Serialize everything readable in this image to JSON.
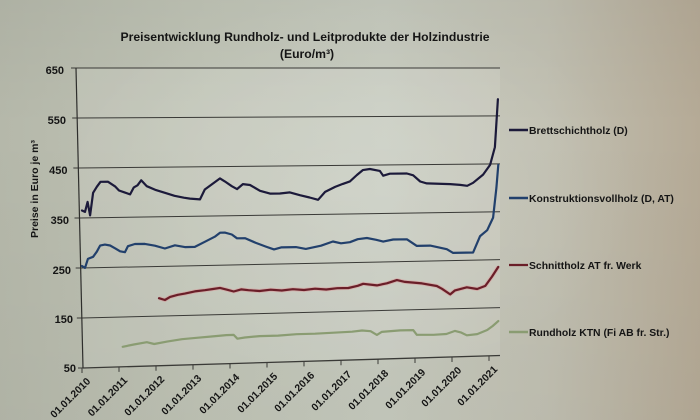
{
  "chart_data": {
    "type": "line",
    "title": "Preisentwicklung Rundholz- und Leitprodukte der Holzindustrie",
    "subtitle": "(Euro/m³)",
    "xlabel": "",
    "ylabel": "Preise in Euro je m³",
    "ylim": [
      50,
      650
    ],
    "yticks": [
      50,
      150,
      250,
      350,
      450,
      550,
      650
    ],
    "xlim": [
      2010,
      2021.35
    ],
    "xtick_labels": [
      "01.01.2010",
      "01.01.2011",
      "01.01.2012",
      "01.01.2013",
      "01.01.2014",
      "01.01.2015",
      "01.01.2016",
      "01.01.2017",
      "01.01.2018",
      "01.01.2019",
      "01.01.2020",
      "01.01.2021"
    ],
    "grid": "horizontal",
    "legend_position": "right",
    "series": [
      {
        "name": "Brettschichtholz (D)",
        "color": "#1c1a3a",
        "points": [
          [
            2010.0,
            365
          ],
          [
            2010.08,
            362
          ],
          [
            2010.15,
            382
          ],
          [
            2010.22,
            355
          ],
          [
            2010.3,
            400
          ],
          [
            2010.4,
            412
          ],
          [
            2010.5,
            422
          ],
          [
            2010.7,
            422
          ],
          [
            2010.9,
            412
          ],
          [
            2011.0,
            404
          ],
          [
            2011.15,
            400
          ],
          [
            2011.3,
            396
          ],
          [
            2011.4,
            410
          ],
          [
            2011.5,
            414
          ],
          [
            2011.6,
            424
          ],
          [
            2011.75,
            412
          ],
          [
            2012.0,
            404
          ],
          [
            2012.25,
            398
          ],
          [
            2012.5,
            392
          ],
          [
            2012.75,
            388
          ],
          [
            2012.92,
            386
          ],
          [
            2013.19,
            384
          ],
          [
            2013.32,
            404
          ],
          [
            2013.54,
            416
          ],
          [
            2013.73,
            426
          ],
          [
            2013.86,
            420
          ],
          [
            2014.05,
            410
          ],
          [
            2014.19,
            404
          ],
          [
            2014.35,
            414
          ],
          [
            2014.54,
            412
          ],
          [
            2014.81,
            400
          ],
          [
            2015.08,
            394
          ],
          [
            2015.35,
            394
          ],
          [
            2015.62,
            396
          ],
          [
            2015.89,
            390
          ],
          [
            2016.15,
            385
          ],
          [
            2016.38,
            380
          ],
          [
            2016.57,
            396
          ],
          [
            2016.84,
            406
          ],
          [
            2017.05,
            412
          ],
          [
            2017.24,
            417
          ],
          [
            2017.43,
            430
          ],
          [
            2017.59,
            440
          ],
          [
            2017.78,
            442
          ],
          [
            2018.05,
            438
          ],
          [
            2018.14,
            428
          ],
          [
            2018.32,
            432
          ],
          [
            2018.78,
            432
          ],
          [
            2018.95,
            428
          ],
          [
            2019.14,
            415
          ],
          [
            2019.32,
            411
          ],
          [
            2019.95,
            409
          ],
          [
            2020.22,
            407
          ],
          [
            2020.41,
            405
          ],
          [
            2020.57,
            411
          ],
          [
            2020.84,
            428
          ],
          [
            2021.03,
            448
          ],
          [
            2021.16,
            485
          ],
          [
            2021.24,
            585
          ]
        ]
      },
      {
        "name": "Konstruktionsvollholz (D, AT)",
        "color": "#22406c",
        "points": [
          [
            2010.0,
            254
          ],
          [
            2010.08,
            250
          ],
          [
            2010.16,
            268
          ],
          [
            2010.3,
            272
          ],
          [
            2010.4,
            282
          ],
          [
            2010.49,
            294
          ],
          [
            2010.62,
            296
          ],
          [
            2010.76,
            294
          ],
          [
            2010.9,
            288
          ],
          [
            2011.03,
            282
          ],
          [
            2011.16,
            280
          ],
          [
            2011.24,
            292
          ],
          [
            2011.43,
            296
          ],
          [
            2011.7,
            296
          ],
          [
            2011.97,
            292
          ],
          [
            2012.24,
            286
          ],
          [
            2012.51,
            292
          ],
          [
            2012.78,
            288
          ],
          [
            2013.05,
            288
          ],
          [
            2013.32,
            298
          ],
          [
            2013.59,
            308
          ],
          [
            2013.73,
            316
          ],
          [
            2013.86,
            316
          ],
          [
            2014.05,
            312
          ],
          [
            2014.19,
            304
          ],
          [
            2014.41,
            304
          ],
          [
            2014.7,
            294
          ],
          [
            2014.97,
            286
          ],
          [
            2015.19,
            280
          ],
          [
            2015.38,
            284
          ],
          [
            2015.78,
            284
          ],
          [
            2016.05,
            280
          ],
          [
            2016.46,
            286
          ],
          [
            2016.78,
            294
          ],
          [
            2017.0,
            290
          ],
          [
            2017.24,
            292
          ],
          [
            2017.45,
            298
          ],
          [
            2017.7,
            300
          ],
          [
            2017.95,
            296
          ],
          [
            2018.14,
            292
          ],
          [
            2018.41,
            296
          ],
          [
            2018.78,
            296
          ],
          [
            2019.05,
            282
          ],
          [
            2019.41,
            282
          ],
          [
            2019.86,
            274
          ],
          [
            2020.03,
            266
          ],
          [
            2020.57,
            266
          ],
          [
            2020.76,
            300
          ],
          [
            2020.95,
            312
          ],
          [
            2021.11,
            338
          ],
          [
            2021.2,
            400
          ],
          [
            2021.25,
            448
          ]
        ]
      },
      {
        "name": "Schnittholz AT fr. Werk",
        "color": "#6a1e28",
        "halo_color": "#d89a9a",
        "points": [
          [
            2012.08,
            186
          ],
          [
            2012.24,
            182
          ],
          [
            2012.38,
            188
          ],
          [
            2012.59,
            192
          ],
          [
            2012.78,
            194
          ],
          [
            2013.05,
            198
          ],
          [
            2013.32,
            200
          ],
          [
            2013.54,
            202
          ],
          [
            2013.73,
            204
          ],
          [
            2013.92,
            200
          ],
          [
            2014.1,
            196
          ],
          [
            2014.3,
            200
          ],
          [
            2014.5,
            198
          ],
          [
            2014.8,
            196
          ],
          [
            2015.1,
            198
          ],
          [
            2015.4,
            196
          ],
          [
            2015.7,
            198
          ],
          [
            2016.0,
            196
          ],
          [
            2016.3,
            198
          ],
          [
            2016.6,
            196
          ],
          [
            2016.9,
            198
          ],
          [
            2017.2,
            198
          ],
          [
            2017.45,
            202
          ],
          [
            2017.6,
            206
          ],
          [
            2017.97,
            202
          ],
          [
            2018.24,
            206
          ],
          [
            2018.51,
            212
          ],
          [
            2018.73,
            208
          ],
          [
            2019.19,
            204
          ],
          [
            2019.59,
            198
          ],
          [
            2019.73,
            192
          ],
          [
            2019.95,
            180
          ],
          [
            2020.08,
            188
          ],
          [
            2020.4,
            194
          ],
          [
            2020.68,
            190
          ],
          [
            2020.9,
            196
          ],
          [
            2021.08,
            215
          ],
          [
            2021.25,
            235
          ]
        ]
      },
      {
        "name": "Rundholz KTN (Fi AB fr. Str.)",
        "color": "#8a9c72",
        "points": [
          [
            2011.1,
            90
          ],
          [
            2011.4,
            94
          ],
          [
            2011.75,
            98
          ],
          [
            2011.95,
            94
          ],
          [
            2012.3,
            98
          ],
          [
            2012.7,
            102
          ],
          [
            2013.1,
            104
          ],
          [
            2013.5,
            106
          ],
          [
            2013.9,
            108
          ],
          [
            2014.1,
            108
          ],
          [
            2014.2,
            100
          ],
          [
            2014.4,
            102
          ],
          [
            2014.8,
            104
          ],
          [
            2015.3,
            104
          ],
          [
            2015.8,
            106
          ],
          [
            2016.3,
            106
          ],
          [
            2016.8,
            107
          ],
          [
            2017.3,
            108
          ],
          [
            2017.57,
            110
          ],
          [
            2017.8,
            108
          ],
          [
            2017.97,
            100
          ],
          [
            2018.1,
            106
          ],
          [
            2018.6,
            108
          ],
          [
            2018.95,
            108
          ],
          [
            2019.05,
            98
          ],
          [
            2019.5,
            97
          ],
          [
            2019.85,
            98
          ],
          [
            2020.08,
            104
          ],
          [
            2020.25,
            100
          ],
          [
            2020.4,
            94
          ],
          [
            2020.68,
            96
          ],
          [
            2020.95,
            104
          ],
          [
            2021.1,
            112
          ],
          [
            2021.25,
            122
          ]
        ]
      }
    ]
  }
}
